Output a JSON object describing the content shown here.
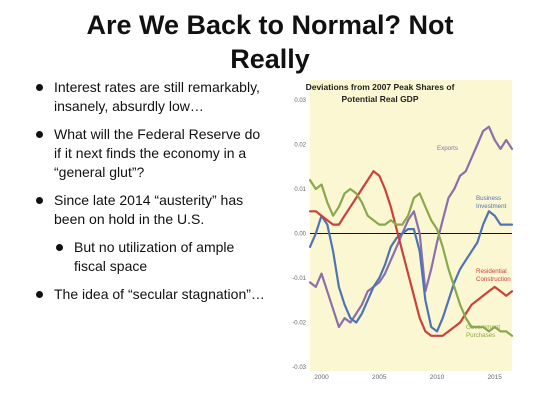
{
  "slide": {
    "title_line1": "Are We Back to Normal? Not",
    "title_line2": "Really",
    "bullets": [
      {
        "text_line1": "Interest rates are still remarkably,",
        "text_line2": "insanely, absurdly low…"
      },
      {
        "text_line1": "What will the Federal Reserve do",
        "text_line2": "if it next finds the economy in a",
        "text_line3": "“general glut”?"
      },
      {
        "text_line1": "Since late 2014 “austerity” has",
        "text_line2": "been on hold in the U.S."
      },
      {
        "text_line1": "But no utilization of ample",
        "text_line2": "fiscal space"
      },
      {
        "text_line1": "The idea of “secular stagnation”…"
      }
    ]
  },
  "chart_data": {
    "type": "line",
    "title_line1": "Deviations from 2007 Peak Shares of",
    "title_line2": "Potential Real GDP",
    "xlim": [
      1999,
      2016.5
    ],
    "ylim": [
      -0.03,
      0.03
    ],
    "x_ticks": [
      2000,
      2005,
      2010,
      2015
    ],
    "x_tick_labels": [
      "2000",
      "2005",
      "2010",
      "2015"
    ],
    "y_ticks": [
      0.03,
      0.02,
      0.01,
      0.0,
      -0.01,
      -0.02,
      -0.03
    ],
    "y_tick_labels": [
      "0.03",
      "0.02",
      "0.01",
      "0.00",
      "-0.01",
      "-0.02",
      "-0.03"
    ],
    "colors": {
      "background": "#fbf7d2",
      "exports": "#8c6fab",
      "business": "#4f74b3",
      "residential": "#c9423b",
      "government": "#8aa84c",
      "zero_line": "#111111"
    },
    "series": [
      {
        "name": "Exports",
        "x": [
          1999,
          1999.5,
          2000,
          2000.5,
          2001,
          2001.5,
          2002,
          2002.5,
          2003,
          2003.5,
          2004,
          2004.5,
          2005,
          2005.5,
          2006,
          2006.5,
          2007,
          2007.5,
          2008,
          2008.5,
          2009,
          2009.5,
          2010,
          2010.5,
          2011,
          2011.5,
          2012,
          2012.5,
          2013,
          2013.5,
          2014,
          2014.5,
          2015,
          2015.5,
          2016,
          2016.5
        ],
        "y": [
          -0.011,
          -0.012,
          -0.009,
          -0.013,
          -0.017,
          -0.021,
          -0.019,
          -0.02,
          -0.018,
          -0.016,
          -0.013,
          -0.012,
          -0.011,
          -0.009,
          -0.006,
          -0.003,
          0.0,
          0.003,
          0.005,
          0.0,
          -0.013,
          -0.008,
          -0.002,
          0.003,
          0.008,
          0.01,
          0.013,
          0.014,
          0.017,
          0.02,
          0.023,
          0.024,
          0.021,
          0.019,
          0.021,
          0.019
        ]
      },
      {
        "name": "Business Investment",
        "x": [
          1999,
          1999.5,
          2000,
          2000.5,
          2001,
          2001.5,
          2002,
          2002.5,
          2003,
          2003.5,
          2004,
          2004.5,
          2005,
          2005.5,
          2006,
          2006.5,
          2007,
          2007.5,
          2008,
          2008.5,
          2009,
          2009.5,
          2010,
          2010.5,
          2011,
          2011.5,
          2012,
          2012.5,
          2013,
          2013.5,
          2014,
          2014.5,
          2015,
          2015.5,
          2016,
          2016.5
        ],
        "y": [
          -0.003,
          0.0,
          0.004,
          0.002,
          -0.004,
          -0.012,
          -0.016,
          -0.019,
          -0.02,
          -0.018,
          -0.015,
          -0.012,
          -0.01,
          -0.007,
          -0.003,
          -0.001,
          0.0,
          0.001,
          0.001,
          -0.004,
          -0.015,
          -0.021,
          -0.022,
          -0.019,
          -0.015,
          -0.011,
          -0.008,
          -0.006,
          -0.004,
          -0.002,
          0.002,
          0.005,
          0.004,
          0.002,
          0.002,
          0.002
        ]
      },
      {
        "name": "Residential Construction",
        "x": [
          1999,
          1999.5,
          2000,
          2000.5,
          2001,
          2001.5,
          2002,
          2002.5,
          2003,
          2003.5,
          2004,
          2004.5,
          2005,
          2005.5,
          2006,
          2006.5,
          2007,
          2007.5,
          2008,
          2008.5,
          2009,
          2009.5,
          2010,
          2010.5,
          2011,
          2011.5,
          2012,
          2012.5,
          2013,
          2013.5,
          2014,
          2014.5,
          2015,
          2015.5,
          2016,
          2016.5
        ],
        "y": [
          0.005,
          0.005,
          0.004,
          0.003,
          0.002,
          0.002,
          0.004,
          0.006,
          0.008,
          0.01,
          0.012,
          0.014,
          0.013,
          0.01,
          0.006,
          0.001,
          -0.004,
          -0.009,
          -0.014,
          -0.019,
          -0.022,
          -0.023,
          -0.023,
          -0.023,
          -0.022,
          -0.021,
          -0.02,
          -0.018,
          -0.016,
          -0.015,
          -0.014,
          -0.013,
          -0.012,
          -0.013,
          -0.014,
          -0.013
        ]
      },
      {
        "name": "Government Purchases",
        "x": [
          1999,
          1999.5,
          2000,
          2000.5,
          2001,
          2001.5,
          2002,
          2002.5,
          2003,
          2003.5,
          2004,
          2004.5,
          2005,
          2005.5,
          2006,
          2006.5,
          2007,
          2007.5,
          2008,
          2008.5,
          2009,
          2009.5,
          2010,
          2010.5,
          2011,
          2011.5,
          2012,
          2012.5,
          2013,
          2013.5,
          2014,
          2014.5,
          2015,
          2015.5,
          2016,
          2016.5
        ],
        "y": [
          0.012,
          0.01,
          0.011,
          0.007,
          0.004,
          0.006,
          0.009,
          0.01,
          0.009,
          0.007,
          0.004,
          0.003,
          0.002,
          0.002,
          0.003,
          0.002,
          0.002,
          0.004,
          0.008,
          0.009,
          0.006,
          0.003,
          0.001,
          -0.003,
          -0.008,
          -0.012,
          -0.016,
          -0.019,
          -0.021,
          -0.021,
          -0.021,
          -0.022,
          -0.021,
          -0.022,
          -0.022,
          -0.023
        ]
      }
    ],
    "series_labels": [
      {
        "series": "Exports",
        "lines": [
          "Exports"
        ]
      },
      {
        "series": "Business Investment",
        "lines": [
          "Business",
          "Investment"
        ]
      },
      {
        "series": "Residential Construction",
        "lines": [
          "Residential",
          "Construction"
        ]
      },
      {
        "series": "Government Purchases",
        "lines": [
          "Government",
          "Purchases"
        ]
      }
    ]
  }
}
